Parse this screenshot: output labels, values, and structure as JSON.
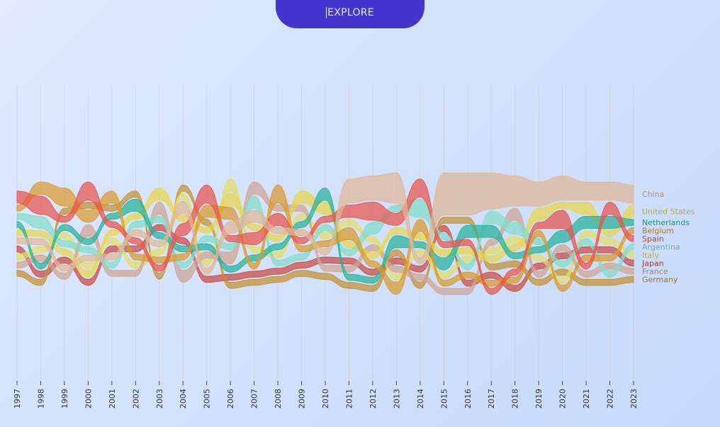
{
  "explore_button": {
    "label": "EXPLORE"
  },
  "chart_data": {
    "type": "area",
    "subtype": "bump-stream",
    "title": "",
    "xlabel": "",
    "ylabel": "",
    "x": [
      1997,
      1998,
      1999,
      2000,
      2001,
      2002,
      2003,
      2004,
      2005,
      2006,
      2007,
      2008,
      2009,
      2010,
      2011,
      2012,
      2013,
      2014,
      2015,
      2016,
      2017,
      2018,
      2019,
      2020,
      2021,
      2022,
      2023
    ],
    "grid": true,
    "legend": "right, labels at series end",
    "series": [
      {
        "name": "China",
        "color": "#dfb797",
        "rank": [
          6,
          5,
          9,
          7,
          8,
          5,
          6,
          3,
          9,
          4,
          3,
          4,
          5,
          7,
          1,
          1,
          1,
          7,
          1,
          1,
          1,
          1,
          1,
          1,
          1,
          1,
          1
        ],
        "weight": [
          1,
          1,
          1,
          1,
          1,
          1,
          1,
          2,
          1,
          2,
          2,
          1,
          1,
          1,
          4,
          4,
          5,
          1,
          7,
          7,
          6,
          5,
          4,
          4,
          3,
          3,
          3
        ]
      },
      {
        "name": "United States",
        "color": "#e8d64a",
        "rank": [
          5,
          4,
          7,
          9,
          5,
          3,
          1,
          4,
          4,
          2,
          4,
          5,
          1,
          2,
          5,
          6,
          4,
          4,
          6,
          6,
          6,
          5,
          2,
          2,
          2,
          4,
          2
        ],
        "weight": [
          1,
          1,
          1,
          1,
          1,
          1,
          2,
          1,
          1,
          2,
          1,
          1,
          2,
          2,
          1,
          1,
          1,
          1,
          1,
          1,
          1,
          1,
          2,
          1,
          2,
          1,
          2
        ]
      },
      {
        "name": "Netherlands",
        "color": "#27b39a",
        "rank": [
          4,
          8,
          4,
          5,
          3,
          2,
          5,
          7,
          6,
          8,
          7,
          6,
          4,
          1,
          9,
          9,
          5,
          5,
          7,
          4,
          3,
          6,
          6,
          3,
          3,
          3,
          3
        ],
        "weight": [
          1,
          1,
          1,
          1,
          1,
          2,
          1,
          1,
          1,
          1,
          1,
          1,
          1,
          2,
          1,
          1,
          2,
          1,
          2,
          2,
          2,
          1,
          1,
          2,
          2,
          2,
          1
        ]
      },
      {
        "name": "Belgium",
        "color": "#da9a2c",
        "rank": [
          2,
          1,
          1,
          3,
          1,
          8,
          8,
          8,
          2,
          3,
          8,
          1,
          7,
          6,
          4,
          7,
          10,
          3,
          9,
          8,
          9,
          9,
          4,
          10,
          7,
          7,
          4
        ],
        "weight": [
          1,
          2,
          3,
          2,
          2,
          1,
          1,
          1,
          2,
          2,
          1,
          3,
          1,
          1,
          2,
          1,
          2,
          2,
          1,
          1,
          1,
          1,
          1,
          1,
          1,
          1,
          1
        ]
      },
      {
        "name": "Spain",
        "color": "#e7554c",
        "rank": [
          1,
          2,
          3,
          1,
          4,
          6,
          9,
          5,
          1,
          5,
          5,
          3,
          6,
          3,
          2,
          2,
          3,
          1,
          5,
          5,
          10,
          8,
          3,
          2,
          8,
          2,
          5
        ],
        "weight": [
          2,
          3,
          1,
          3,
          1,
          1,
          1,
          2,
          3,
          1,
          2,
          2,
          1,
          1,
          2,
          3,
          2,
          3,
          1,
          1,
          1,
          1,
          1,
          3,
          1,
          2,
          1
        ]
      },
      {
        "name": "Argentina",
        "color": "#82dcc8",
        "rank": [
          3,
          3,
          6,
          6,
          9,
          4,
          3,
          9,
          5,
          6,
          2,
          8,
          8,
          4,
          6,
          3,
          2,
          2,
          4,
          7,
          2,
          3,
          5,
          7,
          5,
          9,
          6
        ],
        "weight": [
          1,
          2,
          1,
          1,
          1,
          1,
          1,
          1,
          1,
          1,
          2,
          1,
          1,
          1,
          1,
          2,
          1,
          3,
          1,
          1,
          2,
          2,
          1,
          1,
          1,
          1,
          1
        ]
      },
      {
        "name": "Italy",
        "color": "#e3de66",
        "rank": [
          8,
          6,
          5,
          8,
          6,
          9,
          7,
          2,
          8,
          1,
          6,
          7,
          3,
          5,
          3,
          4,
          9,
          6,
          8,
          6,
          5,
          4,
          7,
          9,
          4,
          5,
          7
        ],
        "weight": [
          1,
          1,
          1,
          1,
          1,
          1,
          1,
          1,
          1,
          2,
          1,
          1,
          1,
          1,
          1,
          1,
          1,
          1,
          1,
          1,
          1,
          1,
          1,
          1,
          1,
          1,
          1
        ]
      },
      {
        "name": "Japan",
        "color": "#cb4a43",
        "rank": [
          7,
          9,
          8,
          10,
          7,
          7,
          4,
          6,
          10,
          9,
          9,
          9,
          9,
          8,
          7,
          8,
          7,
          8,
          3,
          9,
          8,
          10,
          8,
          5,
          6,
          6,
          8
        ],
        "weight": [
          1,
          1,
          1,
          1,
          1,
          1,
          1,
          1,
          1,
          1,
          1,
          1,
          1,
          1,
          1,
          1,
          1,
          1,
          1,
          1,
          1,
          1,
          1,
          1,
          1,
          1,
          1
        ]
      },
      {
        "name": "France",
        "color": "#cfa592",
        "rank": [
          9,
          7,
          10,
          4,
          10,
          10,
          2,
          10,
          7,
          7,
          1,
          2,
          2,
          9,
          8,
          5,
          8,
          9,
          10,
          10,
          4,
          2,
          9,
          4,
          9,
          8,
          9
        ],
        "weight": [
          1,
          1,
          1,
          2,
          1,
          1,
          2,
          2,
          1,
          2,
          2,
          1,
          1,
          1,
          1,
          1,
          1,
          1,
          1,
          1,
          1,
          2,
          1,
          1,
          1,
          1,
          1
        ]
      },
      {
        "name": "Germany",
        "color": "#c49033",
        "rank": [
          10,
          10,
          2,
          2,
          2,
          1,
          10,
          1,
          3,
          10,
          10,
          10,
          10,
          10,
          10,
          10,
          6,
          10,
          2,
          2,
          7,
          7,
          10,
          8,
          10,
          10,
          10
        ],
        "weight": [
          1,
          1,
          1,
          1,
          1,
          1,
          1,
          1,
          1,
          1,
          1,
          1,
          1,
          1,
          1,
          1,
          1,
          1,
          1,
          1,
          1,
          1,
          1,
          1,
          1,
          1,
          1
        ]
      }
    ]
  }
}
